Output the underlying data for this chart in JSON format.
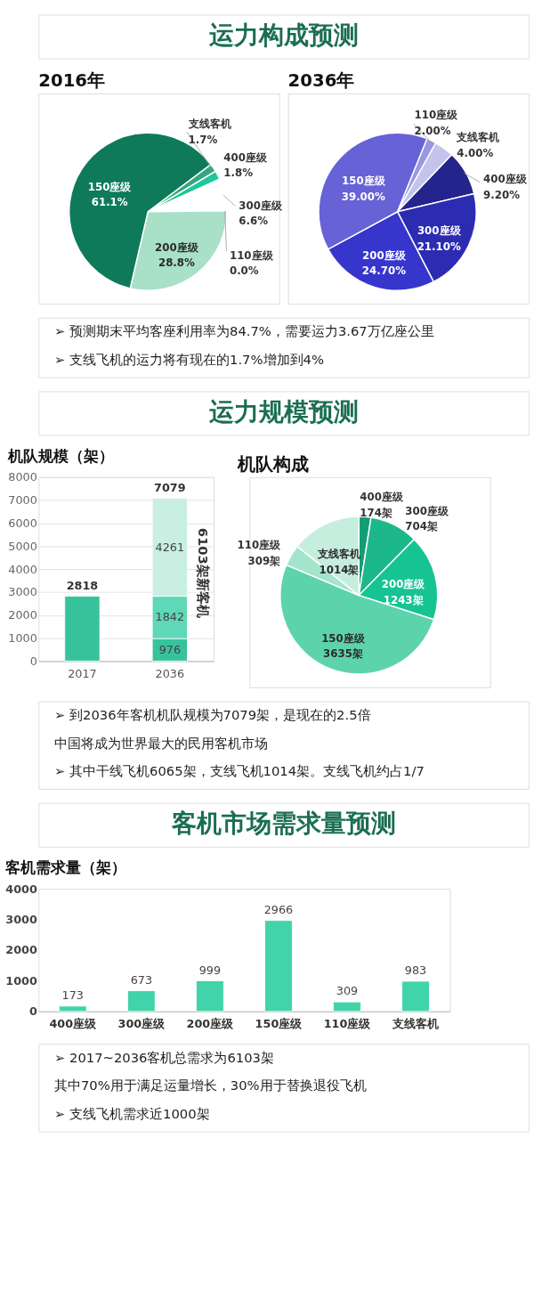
{
  "chart_data": [
    {
      "type": "other",
      "title": "运力构成预测"
    },
    {
      "type": "pie",
      "title": "2016年",
      "categories": [
        "支线客机",
        "400座级",
        "300座级",
        "110座级",
        "200座级",
        "150座级"
      ],
      "values": [
        1.7,
        1.8,
        6.6,
        0.0,
        28.8,
        61.1
      ],
      "colors": [
        "#3aa57c",
        "#1fc79a",
        "#ffffff",
        "#ffffff",
        "#a8e0c8",
        "#0e7a5a"
      ],
      "value_labels": [
        "1.7%",
        "1.8%",
        "6.6%",
        "0.0%",
        "28.8%",
        "61.1%"
      ]
    },
    {
      "type": "pie",
      "title": "2036年",
      "categories": [
        "110座级",
        "支线客机",
        "400座级",
        "300座级",
        "200座级",
        "150座级"
      ],
      "values": [
        2.0,
        4.0,
        9.2,
        21.1,
        24.7,
        39.0
      ],
      "colors": [
        "#9a98e0",
        "#c3c3ee",
        "#25238c",
        "#2c2cb2",
        "#3636cc",
        "#6762d6"
      ],
      "value_labels": [
        "2.00%",
        "4.00%",
        "9.20%",
        "21.10%",
        "24.70%",
        "39.00%"
      ]
    },
    {
      "type": "other",
      "annotations": [
        "➢ 预测期末平均客座利用率为84.7%，需要运力3.67万亿座公里",
        "➢ 支线飞机的运力将有现在的1.7%增加到4%"
      ]
    },
    {
      "type": "other",
      "title": "运力规模预测"
    },
    {
      "type": "bar",
      "title": "机队规模（架）",
      "categories": [
        "2017",
        "2036"
      ],
      "stacked": true,
      "series": [
        {
          "color": "#38c29b",
          "values": [
            2818,
            976
          ],
          "value_labels": [
            null,
            "976"
          ]
        },
        {
          "color": "#5ed8b6",
          "values": [
            null,
            1842
          ],
          "value_labels": [
            null,
            "1842"
          ]
        },
        {
          "color": "#c8efe2",
          "values": [
            null,
            4261
          ],
          "value_labels": [
            null,
            "4261"
          ]
        }
      ],
      "totals": [
        "2818",
        "7079"
      ],
      "ylim": [
        0,
        8000
      ],
      "yticks": [
        0,
        1000,
        2000,
        3000,
        4000,
        5000,
        6000,
        7000,
        8000
      ],
      "grid": "y",
      "annotations": [
        "6103架新客机"
      ]
    },
    {
      "type": "pie",
      "title": "机队构成",
      "categories": [
        "400座级",
        "300座级",
        "200座级",
        "150座级",
        "110座级",
        "支线客机"
      ],
      "values": [
        174,
        704,
        1243,
        3635,
        309,
        1014
      ],
      "colors": [
        "#129e74",
        "#1db88a",
        "#16c493",
        "#5dd3ac",
        "#a3e4cc",
        "#c6eede"
      ],
      "value_labels": [
        "174架",
        "704架",
        "1243架",
        "3635架",
        "309架",
        "1014架"
      ]
    },
    {
      "type": "other",
      "annotations": [
        "➢ 到2036年客机机队规模为7079架，是现在的2.5倍",
        "中国将成为世界最大的民用客机市场",
        "➢ 其中干线飞机6065架，支线飞机1014架。支线飞机约占1/7"
      ]
    },
    {
      "type": "other",
      "title": "客机市场需求量预测"
    },
    {
      "type": "bar",
      "title": "客机需求量（架）",
      "categories": [
        "400座级",
        "300座级",
        "200座级",
        "150座级",
        "110座级",
        "支线客机"
      ],
      "values": [
        173,
        673,
        999,
        2966,
        309,
        983
      ],
      "color": "#41d3a9",
      "ylim": [
        0,
        4000
      ],
      "yticks": [
        0,
        1000,
        2000,
        3000,
        4000
      ],
      "data_labels": true
    },
    {
      "type": "other",
      "annotations": [
        "➢ 2017~2036客机总需求为6103架",
        "其中70%用于满足运量增长，30%用于替换退役飞机",
        "➢ 支线飞机需求近1000架"
      ]
    }
  ]
}
